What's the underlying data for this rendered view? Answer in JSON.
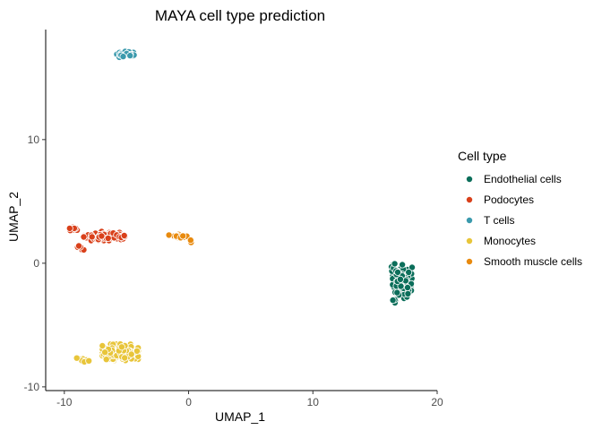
{
  "chart_data": {
    "type": "scatter",
    "title": "MAYA cell type prediction",
    "xlabel": "UMAP_1",
    "ylabel": "UMAP_2",
    "xlim": [
      -11.5,
      20.0
    ],
    "ylim": [
      -10.3,
      18.9
    ],
    "x_ticks": [
      -10,
      0,
      10,
      20
    ],
    "y_ticks": [
      -10,
      0,
      10
    ],
    "grid": false,
    "legend": {
      "title": "Cell type",
      "placement": "right",
      "entries": [
        {
          "label": "Endothelial cells",
          "color": "#0b6e5a"
        },
        {
          "label": "Podocytes",
          "color": "#d9401a"
        },
        {
          "label": "T cells",
          "color": "#3b9aad"
        },
        {
          "label": "Monocytes",
          "color": "#e8c53a"
        },
        {
          "label": "Smooth muscle cells",
          "color": "#e88a0e"
        }
      ]
    },
    "series": [
      {
        "name": "Endothelial cells",
        "clusters": [
          {
            "center": [
              17.2,
              -1.5
            ],
            "spread": [
              0.65,
              1.15
            ],
            "n": 90
          },
          {
            "center": [
              16.6,
              -3.0
            ],
            "spread": [
              0.25,
              0.3
            ],
            "n": 4
          },
          {
            "center": [
              16.5,
              -0.4
            ],
            "spread": [
              0.3,
              0.3
            ],
            "n": 6
          }
        ]
      },
      {
        "name": "Podocytes",
        "clusters": [
          {
            "center": [
              -7.0,
              2.2
            ],
            "spread": [
              1.2,
              0.3
            ],
            "n": 90
          },
          {
            "center": [
              -9.3,
              2.8
            ],
            "spread": [
              0.5,
              0.2
            ],
            "n": 10
          },
          {
            "center": [
              -8.7,
              1.3
            ],
            "spread": [
              0.25,
              0.35
            ],
            "n": 5
          },
          {
            "center": [
              -5.3,
              2.1
            ],
            "spread": [
              0.3,
              0.15
            ],
            "n": 8
          }
        ]
      },
      {
        "name": "T cells",
        "clusters": [
          {
            "center": [
              -5.0,
              16.9
            ],
            "spread": [
              0.65,
              0.2
            ],
            "n": 45
          }
        ]
      },
      {
        "name": "Monocytes",
        "clusters": [
          {
            "center": [
              -5.5,
              -7.2
            ],
            "spread": [
              1.2,
              0.55
            ],
            "n": 170
          },
          {
            "center": [
              -8.5,
              -7.9
            ],
            "spread": [
              0.45,
              0.2
            ],
            "n": 12
          }
        ]
      },
      {
        "name": "Smooth muscle cells",
        "clusters": [
          {
            "center": [
              -0.8,
              2.2
            ],
            "spread": [
              0.65,
              0.12
            ],
            "n": 24
          },
          {
            "center": [
              0.1,
              1.8
            ],
            "spread": [
              0.2,
              0.15
            ],
            "n": 4
          }
        ]
      }
    ]
  }
}
